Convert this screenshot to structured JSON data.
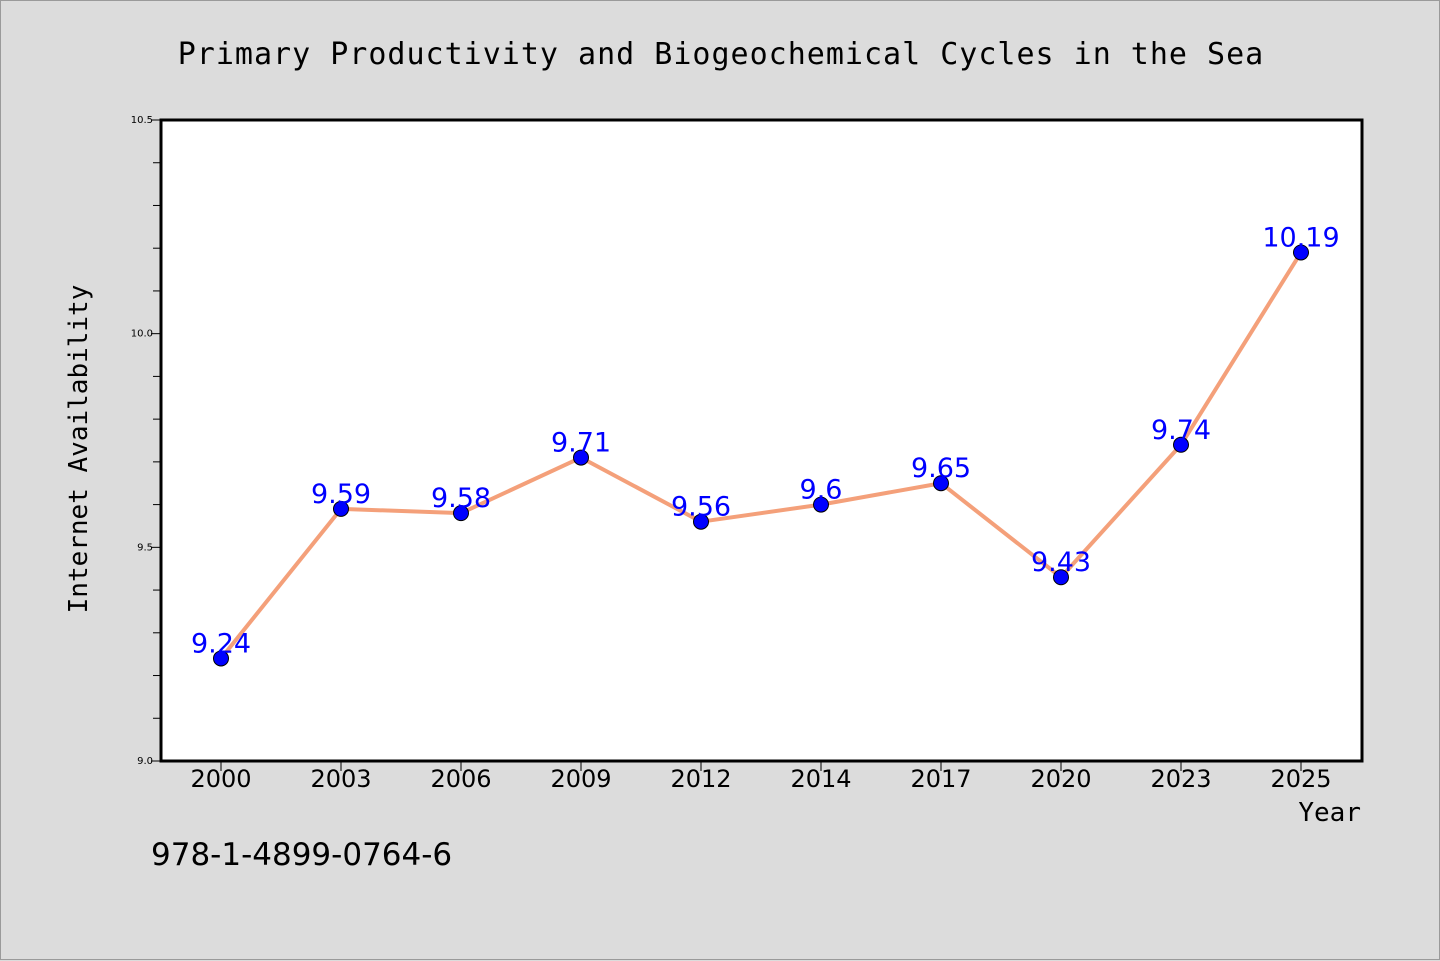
{
  "chart_data": {
    "type": "line",
    "title": "Primary Productivity and Biogeochemical Cycles in the Sea",
    "xlabel": "Year",
    "ylabel": "Internet Availability",
    "categories": [
      "2000",
      "2003",
      "2006",
      "2009",
      "2012",
      "2014",
      "2017",
      "2020",
      "2023",
      "2025"
    ],
    "series": [
      {
        "values": [
          9.24,
          9.59,
          9.58,
          9.71,
          9.56,
          9.6,
          9.65,
          9.43,
          9.74,
          10.19
        ]
      }
    ],
    "data_labels": [
      "9.24",
      "9.59",
      "9.58",
      "9.71",
      "9.56",
      "9.6",
      "9.65",
      "9.43",
      "9.74",
      "10.19"
    ],
    "ylim": [
      9.0,
      10.5
    ],
    "y_ticks": [
      "9.0",
      "9.5",
      "10.0",
      "10.5"
    ],
    "grid": false,
    "legend": "none",
    "colors": {
      "line": "#f4a07a",
      "marker": "#0000ff",
      "label": "#0000ff",
      "background": "#dcdcdc",
      "plot_background": "#ffffff"
    }
  },
  "footer": {
    "isbn": "978-1-4899-0764-6"
  }
}
